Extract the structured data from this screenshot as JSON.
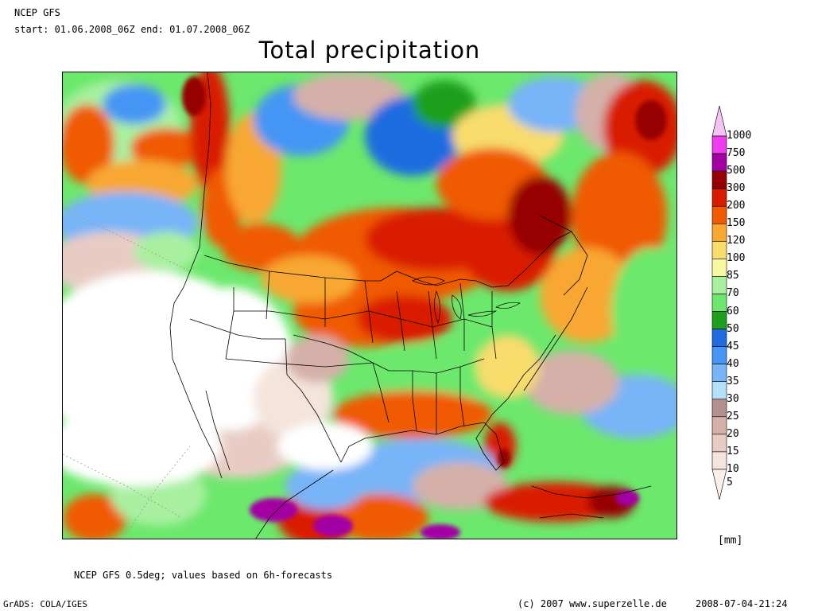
{
  "header": {
    "model": "NCEP GFS",
    "period": "start: 01.06.2008_06Z end: 01.07.2008_06Z"
  },
  "title": "Total precipitation",
  "legend": {
    "unit": "[mm]",
    "bins": [
      {
        "value": "1000",
        "color": "#f4c2f4"
      },
      {
        "value": "750",
        "color": "#ee3cee"
      },
      {
        "value": "500",
        "color": "#a300a3"
      },
      {
        "value": "300",
        "color": "#960000"
      },
      {
        "value": "200",
        "color": "#d91c00"
      },
      {
        "value": "150",
        "color": "#f05a00"
      },
      {
        "value": "120",
        "color": "#f8a830"
      },
      {
        "value": "100",
        "color": "#f8dc6c"
      },
      {
        "value": "85",
        "color": "#f8f8a0"
      },
      {
        "value": "70",
        "color": "#a8f0a0"
      },
      {
        "value": "60",
        "color": "#6ce86c"
      },
      {
        "value": "50",
        "color": "#1ea01e"
      },
      {
        "value": "45",
        "color": "#1e6ce0"
      },
      {
        "value": "40",
        "color": "#4496f4"
      },
      {
        "value": "35",
        "color": "#78b4f8"
      },
      {
        "value": "30",
        "color": "#b4e0f8"
      },
      {
        "value": "25",
        "color": "#b49090"
      },
      {
        "value": "20",
        "color": "#d4b0a8"
      },
      {
        "value": "15",
        "color": "#e8ccc4"
      },
      {
        "value": "10",
        "color": "#f4e4dc"
      },
      {
        "value": "5",
        "color": "#faf0e8"
      }
    ]
  },
  "footer": {
    "note": "NCEP GFS 0.5deg; values based on 6h-forecasts",
    "software": "GrADS: COLA/IGES",
    "copyright": "(c) 2007 www.superzelle.de",
    "timestamp": "2008-07-04-21:24"
  }
}
